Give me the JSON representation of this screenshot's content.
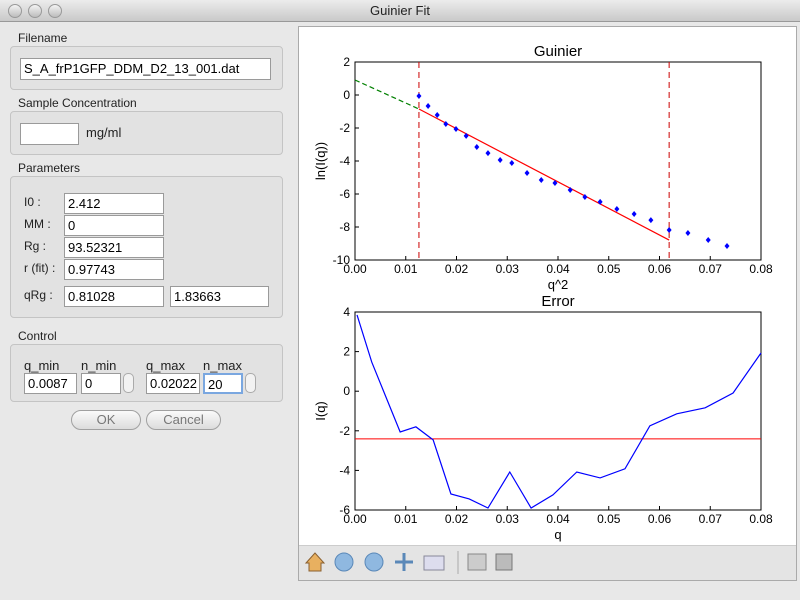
{
  "window": {
    "title": "Guinier Fit"
  },
  "filename": {
    "label": "Filename",
    "value": "S_A_frP1GFP_DDM_D2_13_001.dat"
  },
  "concentration": {
    "label": "Sample Concentration",
    "unit": "mg/ml"
  },
  "parameters": {
    "label": "Parameters",
    "i0": {
      "label": "I0 :",
      "value": "2.412"
    },
    "mm": {
      "label": "MM :",
      "value": "0"
    },
    "rg": {
      "label": "Rg :",
      "value": "93.52321"
    },
    "rfit": {
      "label": "r (fit) :",
      "value": "0.97743"
    },
    "qrg": {
      "label": "qRg :",
      "value": "0.81028",
      "value2": "1.83663"
    }
  },
  "control": {
    "label": "Control",
    "q_min": {
      "label": "q_min",
      "value": "0.0087"
    },
    "n_min": {
      "label": "n_min",
      "value": "0"
    },
    "q_max": {
      "label": "q_max",
      "value": "0.02022"
    },
    "n_max": {
      "label": "n_max",
      "value": "20"
    }
  },
  "buttons": {
    "ok": "OK",
    "cancel": "Cancel"
  },
  "chart_data": [
    {
      "type": "scatter",
      "title": "Guinier",
      "xlabel": "q^2",
      "ylabel": "ln(I(q))",
      "xlim": [
        0,
        0.08
      ],
      "ylim": [
        -10,
        2
      ],
      "xticks": [
        {
          "value": 0,
          "label": "0.00"
        },
        {
          "value": 0.01,
          "label": "0.01"
        },
        {
          "value": 0.02,
          "label": "0.02"
        },
        {
          "value": 0.03,
          "label": "0.03"
        },
        {
          "value": 0.04,
          "label": "0.04"
        },
        {
          "value": 0.05,
          "label": "0.05"
        },
        {
          "value": 0.06,
          "label": "0.06"
        },
        {
          "value": 0.07,
          "label": "0.07"
        },
        {
          "value": 0.08,
          "label": "0.08"
        }
      ],
      "yticks": [
        -10,
        -8,
        -6,
        -4,
        -2,
        0,
        2
      ],
      "points": {
        "color": "#0000ff",
        "x": [
          0.0126,
          0.0144,
          0.0162,
          0.0179,
          0.0199,
          0.0219,
          0.024,
          0.0262,
          0.0286,
          0.0309,
          0.0339,
          0.0367,
          0.0394,
          0.0424,
          0.0453,
          0.0483,
          0.0516,
          0.055,
          0.0583,
          0.0619,
          0.0656,
          0.0696,
          0.0733
        ],
        "y": [
          -0.06,
          -0.67,
          -1.21,
          -1.76,
          -2.06,
          -2.48,
          -3.15,
          -3.52,
          -3.94,
          -4.12,
          -4.73,
          -5.15,
          -5.33,
          -5.76,
          -6.18,
          -6.48,
          -6.91,
          -7.21,
          -7.58,
          -8.18,
          -8.36,
          -8.79,
          -9.15
        ]
      },
      "fit": {
        "color": "#ff0000",
        "x": [
          0.0126,
          0.0619
        ],
        "y": [
          -0.85,
          -8.79
        ]
      },
      "extrapolation": {
        "color": "#008000",
        "dashed": true,
        "x": [
          0,
          0.0126
        ],
        "y": [
          0.91,
          -0.85
        ]
      },
      "vlines": {
        "color": "#cc0000",
        "dashed": true,
        "x": [
          0.0126,
          0.0619
        ]
      }
    },
    {
      "type": "line",
      "title": "Error",
      "xlabel": "q",
      "ylabel": "I(q)",
      "xlim": [
        0,
        0.08
      ],
      "ylim": [
        -6,
        4
      ],
      "xticks": [
        {
          "value": 0,
          "label": "0.00"
        },
        {
          "value": 0.01,
          "label": "0.01"
        },
        {
          "value": 0.02,
          "label": "0.02"
        },
        {
          "value": 0.03,
          "label": "0.03"
        },
        {
          "value": 0.04,
          "label": "0.04"
        },
        {
          "value": 0.05,
          "label": "0.05"
        },
        {
          "value": 0.06,
          "label": "0.06"
        },
        {
          "value": 0.07,
          "label": "0.07"
        },
        {
          "value": 0.08,
          "label": "0.08"
        }
      ],
      "yticks": [
        -6,
        -4,
        -2,
        0,
        2,
        4
      ],
      "series": [
        {
          "color": "#0000ff",
          "x": [
            0.0004,
            0.0033,
            0.0089,
            0.012,
            0.0154,
            0.0189,
            0.0225,
            0.0262,
            0.0305,
            0.0347,
            0.039,
            0.0437,
            0.0483,
            0.0532,
            0.0581,
            0.0634,
            0.069,
            0.0745,
            0.08
          ],
          "values": [
            3.85,
            1.47,
            -2.06,
            -1.8,
            -2.46,
            -5.19,
            -5.44,
            -5.9,
            -4.08,
            -5.9,
            -5.24,
            -4.08,
            -4.38,
            -3.92,
            -1.75,
            -1.14,
            -0.84,
            -0.09,
            1.93
          ]
        }
      ],
      "hlines": {
        "color": "#ff0000",
        "y": [
          -2.41
        ]
      }
    }
  ]
}
